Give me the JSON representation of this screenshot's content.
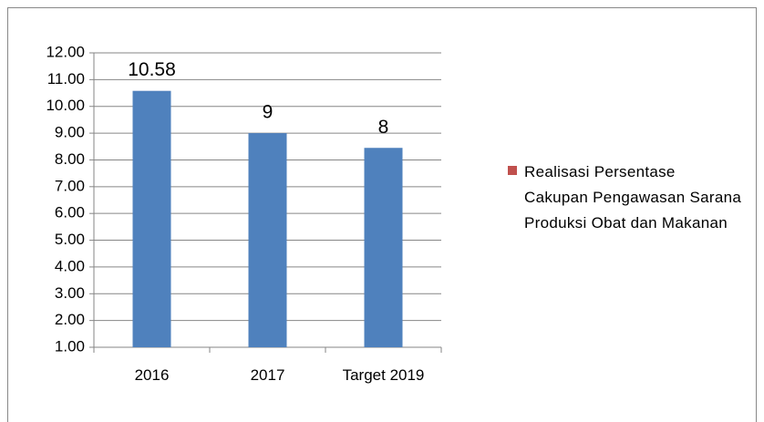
{
  "chart_data": {
    "type": "bar",
    "categories": [
      "2016",
      "2017",
      "Target 2019"
    ],
    "series": [
      {
        "name": "Realisasi Persentase Cakupan Pengawasan Sarana Produksi Obat dan Makanan",
        "color": "#4f81bd",
        "values": [
          10.58,
          9,
          8.45
        ],
        "value_labels": [
          "10.58",
          "9",
          "8"
        ]
      }
    ],
    "legend_color": "#c0504d",
    "legend": "right",
    "ylim": [
      1,
      12
    ],
    "yticks": [
      {
        "value": 1,
        "label": "1.00"
      },
      {
        "value": 2,
        "label": "2.00"
      },
      {
        "value": 3,
        "label": "3.00"
      },
      {
        "value": 4,
        "label": "4.00"
      },
      {
        "value": 5,
        "label": "5.00"
      },
      {
        "value": 6,
        "label": "6.00"
      },
      {
        "value": 7,
        "label": "7.00"
      },
      {
        "value": 8,
        "label": "8.00"
      },
      {
        "value": 9,
        "label": "9.00"
      },
      {
        "value": 10,
        "label": "10.00"
      },
      {
        "value": 11,
        "label": "11.00"
      },
      {
        "value": 12,
        "label": "12.00"
      }
    ],
    "grid": true
  }
}
